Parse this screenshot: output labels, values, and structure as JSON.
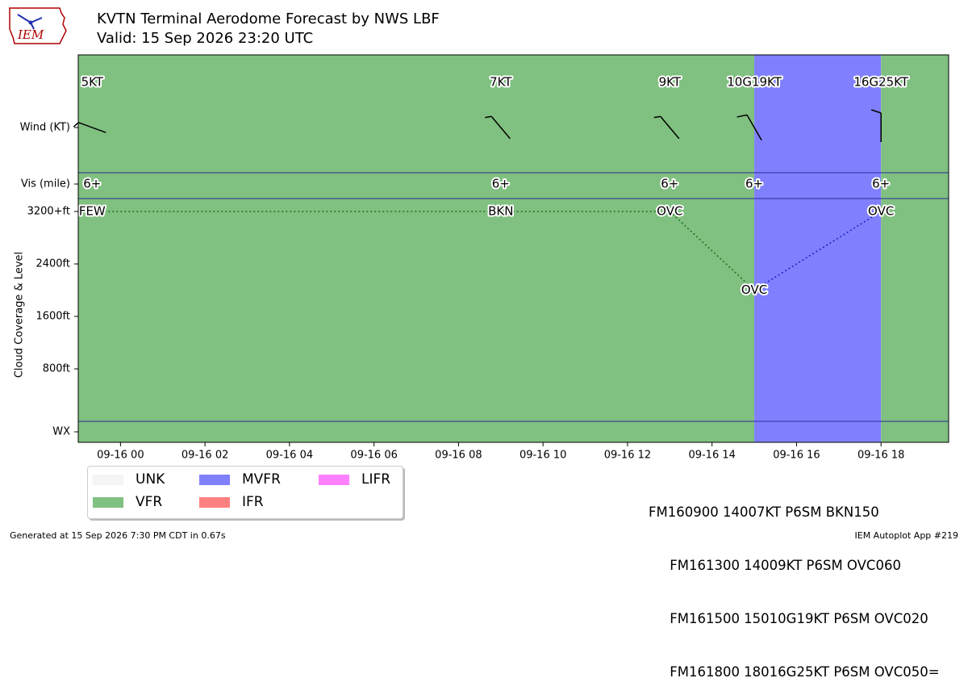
{
  "header": {
    "title": "KVTN Terminal Aerodome Forecast by NWS LBF",
    "subtitle": "Valid: 15 Sep 2026 23:20 UTC",
    "logo_text": "IEM"
  },
  "chart_data": {
    "type": "timeline",
    "x_range_hours": [
      -1.0,
      19.6
    ],
    "x_ticks": [
      {
        "h": 0,
        "label": "09-16 00"
      },
      {
        "h": 2,
        "label": "09-16 02"
      },
      {
        "h": 4,
        "label": "09-16 04"
      },
      {
        "h": 6,
        "label": "09-16 06"
      },
      {
        "h": 8,
        "label": "09-16 08"
      },
      {
        "h": 10,
        "label": "09-16 10"
      },
      {
        "h": 12,
        "label": "09-16 12"
      },
      {
        "h": 14,
        "label": "09-16 14"
      },
      {
        "h": 16,
        "label": "09-16 16"
      },
      {
        "h": 18,
        "label": "09-16 18"
      }
    ],
    "y_labels": {
      "wind": "Wind (KT)",
      "vis": "Vis (mile)",
      "wx": "WX",
      "cloud_axis": "Cloud Coverage & Level"
    },
    "cloud_ticks": [
      {
        "ft": 800,
        "label": "800ft"
      },
      {
        "ft": 1600,
        "label": "1600ft"
      },
      {
        "ft": 2400,
        "label": "2400ft"
      },
      {
        "ft": 3200,
        "label": "3200+ft"
      }
    ],
    "categories": [
      {
        "from": -1.0,
        "to": 15.0,
        "cat": "VFR"
      },
      {
        "from": 15.0,
        "to": 18.0,
        "cat": "MVFR"
      },
      {
        "from": 18.0,
        "to": 19.6,
        "cat": "VFR"
      }
    ],
    "periods": [
      {
        "h": -0.67,
        "wind_dir": 110,
        "wind_kt": 5,
        "wind_label": "5KT",
        "vis": "6+",
        "cloud": "FEW",
        "cloud_ft": 3200
      },
      {
        "h": 9.0,
        "wind_dir": 140,
        "wind_kt": 7,
        "wind_label": "7KT",
        "vis": "6+",
        "cloud": "BKN",
        "cloud_ft": 3200
      },
      {
        "h": 13.0,
        "wind_dir": 140,
        "wind_kt": 9,
        "wind_label": "9KT",
        "vis": "6+",
        "cloud": "OVC",
        "cloud_ft": 3200
      },
      {
        "h": 15.0,
        "wind_dir": 150,
        "wind_kt": 10,
        "wind_label": "10G19KT",
        "vis": "6+",
        "cloud": "OVC",
        "cloud_ft": 2000
      },
      {
        "h": 18.0,
        "wind_dir": 180,
        "wind_kt": 16,
        "wind_label": "16G25KT",
        "vis": "6+",
        "cloud": "OVC",
        "cloud_ft": 3200
      }
    ]
  },
  "legend": [
    {
      "label": "UNK",
      "color": "#f5f5f5"
    },
    {
      "label": "VFR",
      "color": "#80c080"
    },
    {
      "label": "MVFR",
      "color": "#8080ff"
    },
    {
      "label": "IFR",
      "color": "#ff8080"
    },
    {
      "label": "LIFR",
      "color": "#ff80ff"
    }
  ],
  "taf_lines": [
    "FM160900 14007KT P6SM BKN150",
    "     FM161300 14009KT P6SM OVC060",
    "     FM161500 15010G19KT P6SM OVC020",
    "     FM161800 18016G25KT P6SM OVC050="
  ],
  "footer": {
    "left": "Generated at 15 Sep 2026 7:30 PM CDT in 0.67s",
    "right": "IEM Autoplot App #219"
  }
}
